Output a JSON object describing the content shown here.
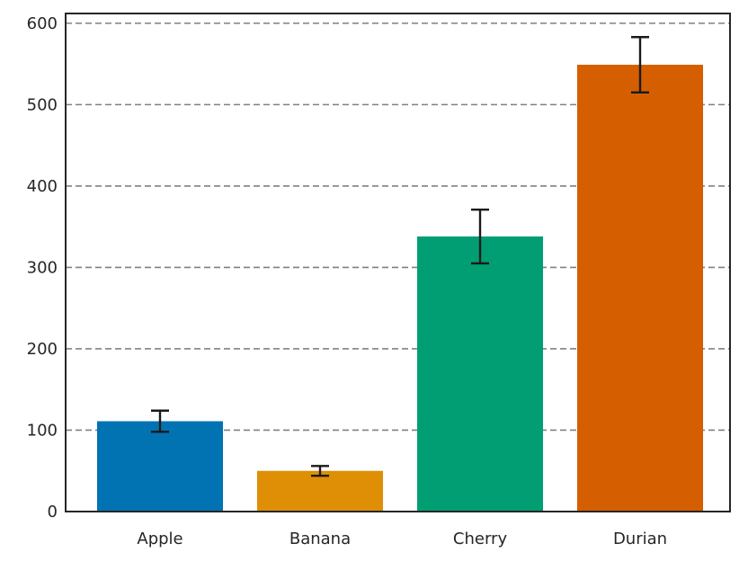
{
  "chart_data": {
    "type": "bar",
    "categories": [
      "Apple",
      "Banana",
      "Cherry",
      "Durian"
    ],
    "values": [
      111,
      50,
      338,
      549
    ],
    "errors": [
      13,
      6,
      33,
      34
    ],
    "colors": [
      "#0173b2",
      "#de8f05",
      "#029e73",
      "#d55e00"
    ],
    "ylim": [
      0,
      612
    ],
    "yticks": [
      "0",
      "100",
      "200",
      "300",
      "400",
      "500",
      "600"
    ],
    "grid": "horizontal dashed",
    "title": "",
    "xlabel": "",
    "ylabel": ""
  }
}
